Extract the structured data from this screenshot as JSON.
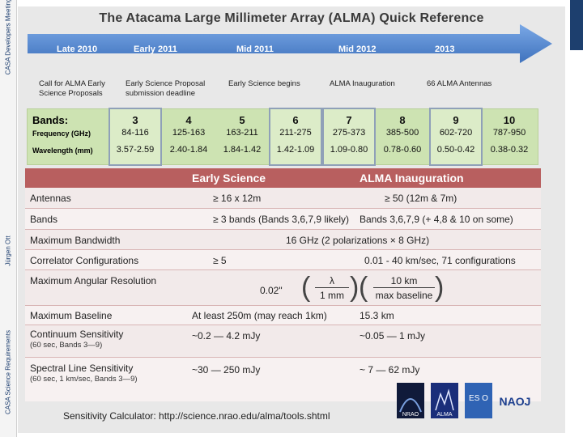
{
  "sidebar": {
    "labels": [
      "CASA Developers Meeting",
      "Jürgen Ott",
      "CASA Science Requirements"
    ]
  },
  "title": "The Atacama Large Millimeter Array (ALMA) Quick Reference",
  "timeline": {
    "dates": [
      "Late 2010",
      "Early 2011",
      "Mid 2011",
      "Mid 2012",
      "2013"
    ],
    "events": [
      "Call for ALMA Early\nScience Proposals",
      "Early Science Proposal\nsubmission deadline",
      "Early Science begins",
      "ALMA Inauguration",
      "66 ALMA Antennas"
    ],
    "arrow_color": "#5b8fd6"
  },
  "bands": {
    "header": "Bands:",
    "freq_label": "Frequency (GHz)",
    "wave_label": "Wavelength (mm)",
    "items": [
      {
        "num": "3",
        "freq": "84-116",
        "wave": "3.57-2.59",
        "selected": true
      },
      {
        "num": "4",
        "freq": "125-163",
        "wave": "2.40-1.84",
        "selected": false
      },
      {
        "num": "5",
        "freq": "163-211",
        "wave": "1.84-1.42",
        "selected": false
      },
      {
        "num": "6",
        "freq": "211-275",
        "wave": "1.42-1.09",
        "selected": true
      },
      {
        "num": "7",
        "freq": "275-373",
        "wave": "1.09-0.80",
        "selected": true
      },
      {
        "num": "8",
        "freq": "385-500",
        "wave": "0.78-0.60",
        "selected": false
      },
      {
        "num": "9",
        "freq": "602-720",
        "wave": "0.50-0.42",
        "selected": true
      },
      {
        "num": "10",
        "freq": "787-950",
        "wave": "0.38-0.32",
        "selected": false
      }
    ]
  },
  "table": {
    "headers": [
      "",
      "Early Science",
      "ALMA Inauguration"
    ],
    "antennas": [
      "Antennas",
      "≥ 16 x 12m",
      "≥ 50 (12m & 7m)"
    ],
    "bands": [
      "Bands",
      "≥ 3 bands (Bands 3,6,7,9 likely)",
      "Bands 3,6,7,9 (+ 4,8 & 10 on some)"
    ],
    "bandwidth": [
      "Maximum Bandwidth",
      "16 GHz (2 polarizations × 8 GHz)"
    ],
    "correlator": [
      "Correlator Configurations",
      "≥ 5",
      "0.01 - 40 km/sec, 71 configurations"
    ],
    "resolution": {
      "label": "Maximum Angular Resolution",
      "value": "0.02\"",
      "num1": "λ",
      "den1": "1 mm",
      "num2": "10 km",
      "den2": "max baseline"
    },
    "baseline": [
      "Maximum Baseline",
      "At least 250m (may reach 1km)",
      "15.3 km"
    ],
    "continuum": {
      "label": "Continuum Sensitivity",
      "sub": "(60 sec, Bands 3—9)",
      "c1": "~0.2 — 4.2 mJy",
      "c2": "~0.05 — 1 mJy"
    },
    "spectral": {
      "label": "Spectral Line Sensitivity",
      "sub": "(60 sec, 1 km/sec, Bands 3—9)",
      "c1": "~30 — 250 mJy",
      "c2": "~ 7 — 62 mJy"
    }
  },
  "logos": [
    "NRAO",
    "ALMA",
    "ES O",
    "NAOJ"
  ],
  "calculator": "Sensitivity Calculator: http://science.nrao.edu/alma/tools.shtml",
  "colors": {
    "header_red": "#b85f5f",
    "band_green": "#cde3b2"
  }
}
